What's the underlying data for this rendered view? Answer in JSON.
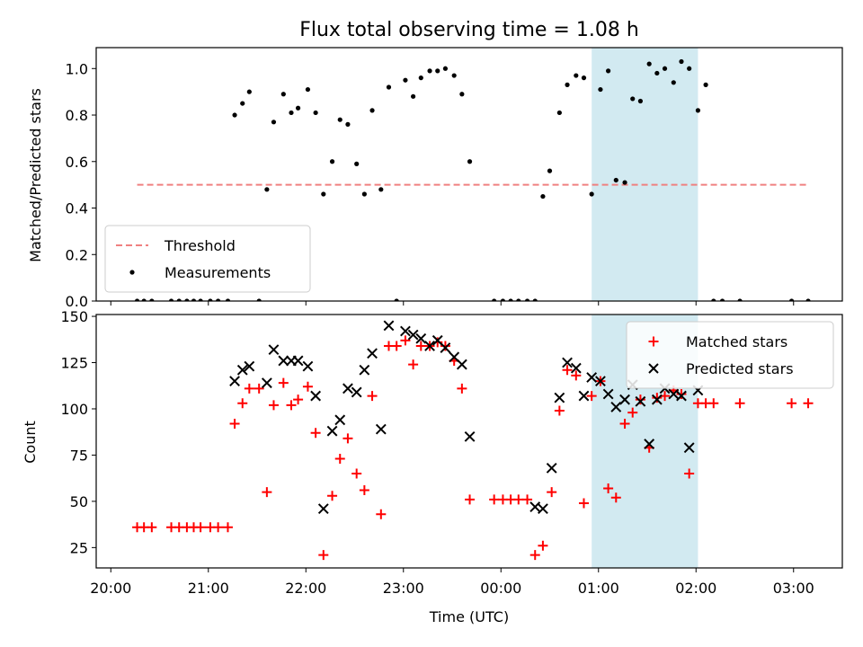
{
  "chart_data": {
    "type": "scatter",
    "title": "Flux total observing time = 1.08 h",
    "xlabel": "Time (UTC)",
    "x_unit": "hours (UTC); values after 24 are past midnight",
    "xlim": [
      19.85,
      27.5
    ],
    "x_ticks": [
      20,
      21,
      22,
      23,
      24,
      25,
      26,
      27
    ],
    "x_tick_labels": [
      "20:00",
      "21:00",
      "22:00",
      "23:00",
      "00:00",
      "01:00",
      "02:00",
      "03:00"
    ],
    "highlight_span": [
      24.93,
      26.02
    ],
    "highlight_color": "#add8e6",
    "panels": [
      {
        "ylabel": "Matched/Predicted stars",
        "ylim": [
          0,
          1.09
        ],
        "y_ticks": [
          0,
          0.2,
          0.4,
          0.6,
          0.8,
          1.0
        ],
        "y_tick_labels": [
          "0.0",
          "0.2",
          "0.4",
          "0.6",
          "0.8",
          "1.0"
        ],
        "legend_position": "lower-left",
        "threshold": {
          "name": "Threshold",
          "y": 0.5,
          "x_range": [
            20.27,
            27.15
          ],
          "color": "#f08080",
          "style": "dashed"
        },
        "series": [
          {
            "name": "Measurements",
            "marker": "dot",
            "color": "#000000",
            "points": [
              [
                20.27,
                0.0
              ],
              [
                20.34,
                0.0
              ],
              [
                20.42,
                0.0
              ],
              [
                20.62,
                0.0
              ],
              [
                20.7,
                0.0
              ],
              [
                20.78,
                0.0
              ],
              [
                20.85,
                0.0
              ],
              [
                20.92,
                0.0
              ],
              [
                21.02,
                0.0
              ],
              [
                21.1,
                0.0
              ],
              [
                21.2,
                0.0
              ],
              [
                21.27,
                0.8
              ],
              [
                21.35,
                0.85
              ],
              [
                21.42,
                0.9
              ],
              [
                21.52,
                0.0
              ],
              [
                21.6,
                0.48
              ],
              [
                21.67,
                0.77
              ],
              [
                21.77,
                0.89
              ],
              [
                21.85,
                0.81
              ],
              [
                21.92,
                0.83
              ],
              [
                22.02,
                0.91
              ],
              [
                22.1,
                0.81
              ],
              [
                22.18,
                0.46
              ],
              [
                22.27,
                0.6
              ],
              [
                22.35,
                0.78
              ],
              [
                22.43,
                0.76
              ],
              [
                22.52,
                0.59
              ],
              [
                22.6,
                0.46
              ],
              [
                22.68,
                0.82
              ],
              [
                22.77,
                0.48
              ],
              [
                22.85,
                0.92
              ],
              [
                22.93,
                0.0
              ],
              [
                23.02,
                0.95
              ],
              [
                23.1,
                0.88
              ],
              [
                23.18,
                0.96
              ],
              [
                23.27,
                0.99
              ],
              [
                23.35,
                0.99
              ],
              [
                23.43,
                1.0
              ],
              [
                23.52,
                0.97
              ],
              [
                23.6,
                0.89
              ],
              [
                23.68,
                0.6
              ],
              [
                23.93,
                0.0
              ],
              [
                24.02,
                0.0
              ],
              [
                24.1,
                0.0
              ],
              [
                24.18,
                0.0
              ],
              [
                24.27,
                0.0
              ],
              [
                24.35,
                0.0
              ],
              [
                24.43,
                0.45
              ],
              [
                24.5,
                0.56
              ],
              [
                24.6,
                0.81
              ],
              [
                24.68,
                0.93
              ],
              [
                24.77,
                0.97
              ],
              [
                24.85,
                0.96
              ],
              [
                24.93,
                0.46
              ],
              [
                25.02,
                0.91
              ],
              [
                25.1,
                0.99
              ],
              [
                25.18,
                0.52
              ],
              [
                25.27,
                0.51
              ],
              [
                25.35,
                0.87
              ],
              [
                25.43,
                0.86
              ],
              [
                25.52,
                1.02
              ],
              [
                25.6,
                0.98
              ],
              [
                25.68,
                1.0
              ],
              [
                25.77,
                0.94
              ],
              [
                25.85,
                1.03
              ],
              [
                25.93,
                1.0
              ],
              [
                26.02,
                0.82
              ],
              [
                26.1,
                0.93
              ],
              [
                26.18,
                0.0
              ],
              [
                26.27,
                0.0
              ],
              [
                26.45,
                0.0
              ],
              [
                26.98,
                0.0
              ],
              [
                27.15,
                0.0
              ]
            ]
          }
        ]
      },
      {
        "ylabel": "Count",
        "ylim": [
          14,
          151
        ],
        "y_ticks": [
          25,
          50,
          75,
          100,
          125,
          150
        ],
        "y_tick_labels": [
          "25",
          "50",
          "75",
          "100",
          "125",
          "150"
        ],
        "legend_position": "upper-right",
        "series": [
          {
            "name": "Matched stars",
            "marker": "plus",
            "color": "#ff0000",
            "points": [
              [
                20.27,
                36
              ],
              [
                20.34,
                36
              ],
              [
                20.42,
                36
              ],
              [
                20.62,
                36
              ],
              [
                20.7,
                36
              ],
              [
                20.78,
                36
              ],
              [
                20.85,
                36
              ],
              [
                20.92,
                36
              ],
              [
                21.02,
                36
              ],
              [
                21.1,
                36
              ],
              [
                21.2,
                36
              ],
              [
                21.27,
                92
              ],
              [
                21.35,
                103
              ],
              [
                21.42,
                111
              ],
              [
                21.52,
                111
              ],
              [
                21.6,
                55
              ],
              [
                21.67,
                102
              ],
              [
                21.77,
                114
              ],
              [
                21.85,
                102
              ],
              [
                21.92,
                105
              ],
              [
                22.02,
                112
              ],
              [
                22.1,
                87
              ],
              [
                22.18,
                21
              ],
              [
                22.27,
                53
              ],
              [
                22.35,
                73
              ],
              [
                22.43,
                84
              ],
              [
                22.52,
                65
              ],
              [
                22.6,
                56
              ],
              [
                22.68,
                107
              ],
              [
                22.77,
                43
              ],
              [
                22.85,
                134
              ],
              [
                22.93,
                134
              ],
              [
                23.02,
                137
              ],
              [
                23.1,
                124
              ],
              [
                23.18,
                134
              ],
              [
                23.27,
                134
              ],
              [
                23.35,
                136
              ],
              [
                23.43,
                134
              ],
              [
                23.52,
                126
              ],
              [
                23.6,
                111
              ],
              [
                23.68,
                51
              ],
              [
                23.93,
                51
              ],
              [
                24.02,
                51
              ],
              [
                24.1,
                51
              ],
              [
                24.18,
                51
              ],
              [
                24.27,
                51
              ],
              [
                24.35,
                21
              ],
              [
                24.43,
                26
              ],
              [
                24.52,
                55
              ],
              [
                24.6,
                99
              ],
              [
                24.68,
                121
              ],
              [
                24.77,
                118
              ],
              [
                24.85,
                49
              ],
              [
                24.93,
                107
              ],
              [
                25.02,
                115
              ],
              [
                25.1,
                57
              ],
              [
                25.18,
                52
              ],
              [
                25.27,
                92
              ],
              [
                25.35,
                98
              ],
              [
                25.43,
                105
              ],
              [
                25.52,
                79
              ],
              [
                25.6,
                106
              ],
              [
                25.68,
                107
              ],
              [
                25.77,
                110
              ],
              [
                25.85,
                108
              ],
              [
                25.93,
                65
              ],
              [
                26.02,
                103
              ],
              [
                26.1,
                103
              ],
              [
                26.18,
                103
              ],
              [
                26.45,
                103
              ],
              [
                26.98,
                103
              ],
              [
                27.15,
                103
              ]
            ]
          },
          {
            "name": "Predicted stars",
            "marker": "x",
            "color": "#000000",
            "points": [
              [
                21.27,
                115
              ],
              [
                21.35,
                121
              ],
              [
                21.42,
                123
              ],
              [
                21.6,
                114
              ],
              [
                21.67,
                132
              ],
              [
                21.77,
                126
              ],
              [
                21.85,
                126
              ],
              [
                21.92,
                126
              ],
              [
                22.02,
                123
              ],
              [
                22.1,
                107
              ],
              [
                22.18,
                46
              ],
              [
                22.27,
                88
              ],
              [
                22.35,
                94
              ],
              [
                22.43,
                111
              ],
              [
                22.52,
                109
              ],
              [
                22.6,
                121
              ],
              [
                22.68,
                130
              ],
              [
                22.77,
                89
              ],
              [
                22.85,
                145
              ],
              [
                23.02,
                142
              ],
              [
                23.1,
                140
              ],
              [
                23.18,
                138
              ],
              [
                23.27,
                134
              ],
              [
                23.35,
                137
              ],
              [
                23.43,
                133
              ],
              [
                23.52,
                128
              ],
              [
                23.6,
                124
              ],
              [
                23.68,
                85
              ],
              [
                24.35,
                47
              ],
              [
                24.43,
                46
              ],
              [
                24.52,
                68
              ],
              [
                24.6,
                106
              ],
              [
                24.68,
                125
              ],
              [
                24.77,
                122
              ],
              [
                24.85,
                107
              ],
              [
                24.93,
                117
              ],
              [
                25.02,
                115
              ],
              [
                25.1,
                108
              ],
              [
                25.18,
                101
              ],
              [
                25.27,
                105
              ],
              [
                25.35,
                113
              ],
              [
                25.43,
                104
              ],
              [
                25.52,
                81
              ],
              [
                25.6,
                105
              ],
              [
                25.68,
                111
              ],
              [
                25.77,
                108
              ],
              [
                25.85,
                107
              ],
              [
                25.93,
                79
              ],
              [
                26.02,
                110
              ]
            ]
          }
        ]
      }
    ]
  }
}
